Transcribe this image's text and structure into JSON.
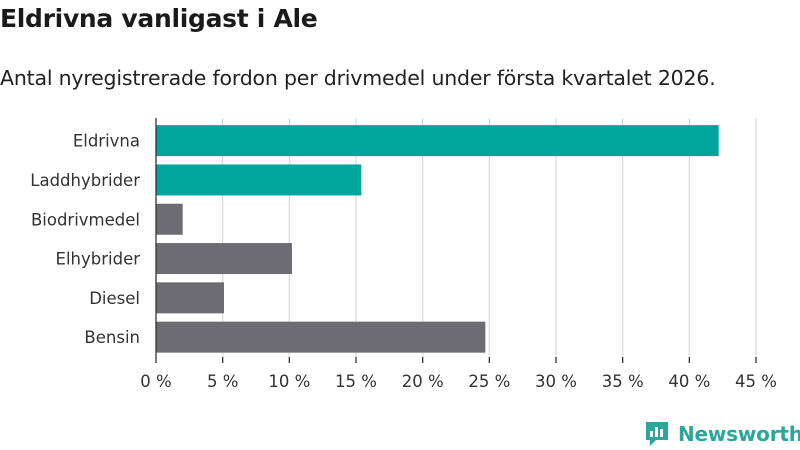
{
  "header": {
    "title": "Eldrivna vanligast i Ale",
    "subtitle": "Antal nyregistrerade fordon per drivmedel under första kvartalet 2026."
  },
  "brand": {
    "name": "Newsworthy",
    "icon": "newsworthy-logo-icon"
  },
  "colors": {
    "highlight": "#00a69b",
    "default": "#6d6c72",
    "grid": "#dcdcdc",
    "axis": "#333333"
  },
  "chart_data": {
    "type": "bar",
    "orientation": "horizontal",
    "categories": [
      "Eldrivna",
      "Laddhybrider",
      "Biodrivmedel",
      "Elhybrider",
      "Diesel",
      "Bensin"
    ],
    "values": [
      42.2,
      15.4,
      2.0,
      10.2,
      5.1,
      24.7
    ],
    "highlighted": [
      true,
      true,
      false,
      false,
      false,
      false
    ],
    "xlim": [
      0,
      45
    ],
    "xticks": [
      0,
      5,
      10,
      15,
      20,
      25,
      30,
      35,
      40,
      45
    ],
    "xtick_labels": [
      "0 %",
      "5 %",
      "10 %",
      "15 %",
      "20 %",
      "25 %",
      "30 %",
      "35 %",
      "40 %",
      "45 %"
    ],
    "grid": true,
    "legend": false
  }
}
